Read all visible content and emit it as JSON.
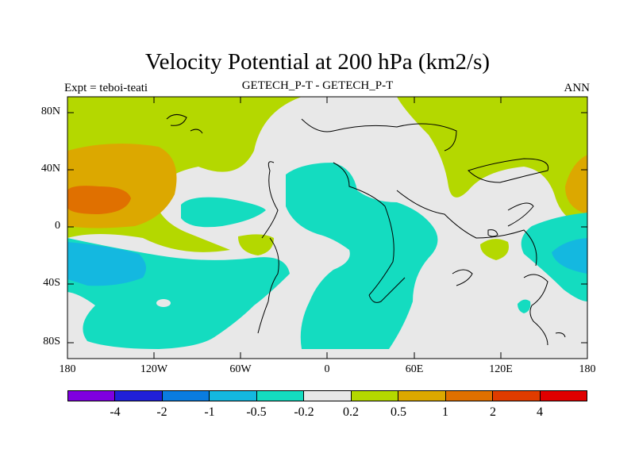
{
  "title": "Velocity Potential at 200 hPa (km2/s)",
  "subtitle_left": "Expt = teboi-teati",
  "subtitle_center": "GETECH_P-T - GETECH_P-T",
  "subtitle_right": "ANN",
  "y_ticks": [
    "80N",
    "40N",
    "0",
    "40S",
    "80S"
  ],
  "x_ticks": [
    "180",
    "120W",
    "60W",
    "0",
    "60E",
    "120E",
    "180"
  ],
  "colorbar": {
    "labels": [
      "-4",
      "-2",
      "-1",
      "-0.5",
      "-0.2",
      "0.2",
      "0.5",
      "1",
      "2",
      "4"
    ],
    "colors": [
      "#7f00e0",
      "#2020d8",
      "#0a7ce0",
      "#14b8e0",
      "#14dcc0",
      "#e8e8e8",
      "#b4d800",
      "#dca800",
      "#e07000",
      "#e03c00",
      "#e00000"
    ]
  },
  "field_colors": {
    "neutral": "#e8e8e8",
    "pos_weak": "#b4d800",
    "pos_mid": "#dca800",
    "pos_strong": "#e07000",
    "neg_weak": "#14dcc0",
    "neg_mid": "#14b8e0"
  }
}
